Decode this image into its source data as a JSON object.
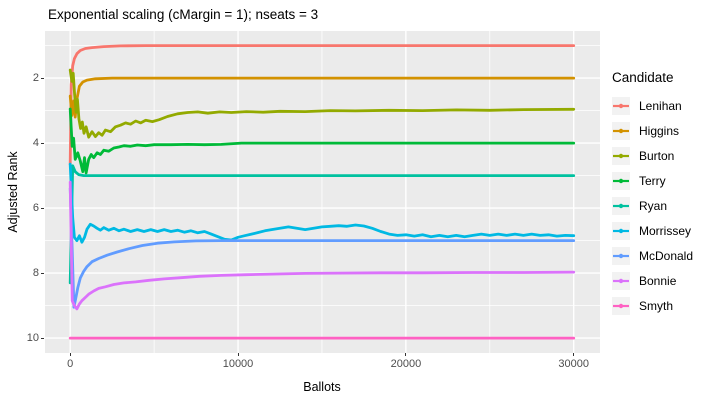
{
  "title": "Exponential scaling (cMargin = 1); nseats = 3",
  "axes": {
    "x": {
      "label": "Ballots",
      "major_ticks": [
        0,
        10000,
        20000,
        30000
      ],
      "minor_ticks": [
        5000,
        15000,
        25000
      ],
      "range": [
        0,
        30000
      ]
    },
    "y": {
      "label": "Adjusted Rank",
      "major_ticks": [
        2,
        4,
        6,
        8,
        10
      ],
      "minor_ticks": [
        1,
        3,
        5,
        7,
        9
      ],
      "range": [
        1,
        10
      ],
      "reversed": true
    }
  },
  "legend": {
    "title": "Candidate",
    "position": "right"
  },
  "theme": {
    "panel_bg": "#EBEBEB",
    "grid_color": "#FFFFFF",
    "tick_text_color": "#4D4D4D",
    "tick_mark_color": "#333333",
    "text_color": "#000000",
    "legend_key_bg": "#F2F2F2"
  },
  "chart_data": {
    "type": "line",
    "title": "Exponential scaling (cMargin = 1); nseats = 3",
    "xlabel": "Ballots",
    "ylabel": "Adjusted Rank",
    "xlim": [
      0,
      30000
    ],
    "ylim": [
      1,
      10
    ],
    "y_axis_reversed": true,
    "grid": true,
    "legend_position": "right",
    "series": [
      {
        "name": "Lenihan",
        "color": "#F8766D",
        "final_rank": 1,
        "points": [
          [
            0,
            4.65
          ],
          [
            60,
            2.2
          ],
          [
            150,
            1.62
          ],
          [
            250,
            1.4
          ],
          [
            400,
            1.25
          ],
          [
            600,
            1.15
          ],
          [
            900,
            1.09
          ],
          [
            1300,
            1.06
          ],
          [
            2000,
            1.03
          ],
          [
            3000,
            1.01
          ],
          [
            4500,
            1.0
          ],
          [
            10000,
            1.0
          ],
          [
            20000,
            1.0
          ],
          [
            30000,
            1.0
          ]
        ]
      },
      {
        "name": "Higgins",
        "color": "#D39200",
        "final_rank": 2,
        "points": [
          [
            0,
            2.55
          ],
          [
            100,
            3.15
          ],
          [
            200,
            2.7
          ],
          [
            300,
            3.2
          ],
          [
            420,
            2.6
          ],
          [
            550,
            2.25
          ],
          [
            750,
            2.12
          ],
          [
            1000,
            2.06
          ],
          [
            1500,
            2.02
          ],
          [
            2500,
            2.0
          ],
          [
            10000,
            2.0
          ],
          [
            20000,
            2.0
          ],
          [
            30000,
            2.0
          ]
        ]
      },
      {
        "name": "Burton",
        "color": "#93AA00",
        "final_rank": 3,
        "points": [
          [
            0,
            1.75
          ],
          [
            100,
            2.1
          ],
          [
            180,
            1.85
          ],
          [
            260,
            2.5
          ],
          [
            350,
            3.05
          ],
          [
            430,
            2.65
          ],
          [
            520,
            3.25
          ],
          [
            620,
            3.55
          ],
          [
            720,
            3.35
          ],
          [
            820,
            3.7
          ],
          [
            950,
            3.5
          ],
          [
            1100,
            3.82
          ],
          [
            1300,
            3.65
          ],
          [
            1500,
            3.8
          ],
          [
            1700,
            3.68
          ],
          [
            1900,
            3.76
          ],
          [
            2100,
            3.6
          ],
          [
            2400,
            3.65
          ],
          [
            2700,
            3.5
          ],
          [
            3000,
            3.45
          ],
          [
            3300,
            3.38
          ],
          [
            3600,
            3.42
          ],
          [
            3900,
            3.32
          ],
          [
            4200,
            3.38
          ],
          [
            4500,
            3.3
          ],
          [
            4900,
            3.34
          ],
          [
            5300,
            3.28
          ],
          [
            5800,
            3.18
          ],
          [
            6400,
            3.1
          ],
          [
            7000,
            3.06
          ],
          [
            7600,
            3.04
          ],
          [
            8200,
            3.08
          ],
          [
            8900,
            3.04
          ],
          [
            9600,
            3.06
          ],
          [
            10500,
            3.03
          ],
          [
            11500,
            3.05
          ],
          [
            12500,
            3.02
          ],
          [
            14000,
            3.03
          ],
          [
            15500,
            3.0
          ],
          [
            17000,
            3.01
          ],
          [
            19000,
            2.99
          ],
          [
            21000,
            3.0
          ],
          [
            23000,
            2.98
          ],
          [
            25000,
            2.99
          ],
          [
            27000,
            2.97
          ],
          [
            30000,
            2.96
          ]
        ]
      },
      {
        "name": "Terry",
        "color": "#00BA38",
        "final_rank": 4,
        "points": [
          [
            0,
            2.95
          ],
          [
            120,
            4.1
          ],
          [
            200,
            3.85
          ],
          [
            300,
            4.5
          ],
          [
            450,
            4.3
          ],
          [
            600,
            4.55
          ],
          [
            750,
            4.88
          ],
          [
            850,
            4.45
          ],
          [
            950,
            4.92
          ],
          [
            1100,
            4.5
          ],
          [
            1250,
            4.35
          ],
          [
            1400,
            4.45
          ],
          [
            1600,
            4.3
          ],
          [
            1800,
            4.35
          ],
          [
            2000,
            4.22
          ],
          [
            2300,
            4.25
          ],
          [
            2600,
            4.15
          ],
          [
            2900,
            4.12
          ],
          [
            3200,
            4.08
          ],
          [
            3600,
            4.1
          ],
          [
            4000,
            4.06
          ],
          [
            4500,
            4.08
          ],
          [
            5000,
            4.05
          ],
          [
            6000,
            4.05
          ],
          [
            7000,
            4.04
          ],
          [
            8000,
            4.05
          ],
          [
            9000,
            4.04
          ],
          [
            10200,
            4.0
          ],
          [
            12000,
            4.0
          ],
          [
            16000,
            4.0
          ],
          [
            20000,
            4.0
          ],
          [
            25000,
            4.0
          ],
          [
            30000,
            4.0
          ]
        ]
      },
      {
        "name": "Ryan",
        "color": "#00C19F",
        "final_rank": 5,
        "points": [
          [
            0,
            8.3
          ],
          [
            150,
            4.7
          ],
          [
            300,
            4.88
          ],
          [
            500,
            4.97
          ],
          [
            800,
            5.0
          ],
          [
            5000,
            5.0
          ],
          [
            10000,
            5.0
          ],
          [
            20000,
            5.0
          ],
          [
            30000,
            5.0
          ]
        ]
      },
      {
        "name": "Morrissey",
        "color": "#00B9E3",
        "final_rank": 6.85,
        "points": [
          [
            0,
            4.65
          ],
          [
            150,
            6.3
          ],
          [
            250,
            6.9
          ],
          [
            400,
            7.0
          ],
          [
            550,
            6.85
          ],
          [
            700,
            7.05
          ],
          [
            850,
            6.9
          ],
          [
            1000,
            6.65
          ],
          [
            1200,
            6.5
          ],
          [
            1400,
            6.55
          ],
          [
            1600,
            6.62
          ],
          [
            1800,
            6.68
          ],
          [
            2000,
            6.6
          ],
          [
            2300,
            6.68
          ],
          [
            2600,
            6.62
          ],
          [
            2900,
            6.7
          ],
          [
            3200,
            6.65
          ],
          [
            3600,
            6.72
          ],
          [
            4000,
            6.66
          ],
          [
            4400,
            6.72
          ],
          [
            4800,
            6.66
          ],
          [
            5200,
            6.72
          ],
          [
            5600,
            6.66
          ],
          [
            6000,
            6.72
          ],
          [
            6400,
            6.68
          ],
          [
            6800,
            6.74
          ],
          [
            7200,
            6.7
          ],
          [
            7600,
            6.76
          ],
          [
            8000,
            6.72
          ],
          [
            8400,
            6.8
          ],
          [
            8800,
            6.88
          ],
          [
            9200,
            6.96
          ],
          [
            9600,
            6.98
          ],
          [
            10000,
            6.9
          ],
          [
            10400,
            6.85
          ],
          [
            10800,
            6.8
          ],
          [
            11200,
            6.75
          ],
          [
            11600,
            6.7
          ],
          [
            12000,
            6.66
          ],
          [
            12500,
            6.62
          ],
          [
            13000,
            6.58
          ],
          [
            13500,
            6.62
          ],
          [
            14000,
            6.66
          ],
          [
            14500,
            6.62
          ],
          [
            15000,
            6.58
          ],
          [
            15500,
            6.56
          ],
          [
            16000,
            6.54
          ],
          [
            16500,
            6.56
          ],
          [
            17000,
            6.52
          ],
          [
            17500,
            6.55
          ],
          [
            18000,
            6.62
          ],
          [
            18500,
            6.72
          ],
          [
            19000,
            6.8
          ],
          [
            19500,
            6.84
          ],
          [
            20000,
            6.82
          ],
          [
            20500,
            6.86
          ],
          [
            21000,
            6.82
          ],
          [
            21500,
            6.88
          ],
          [
            22000,
            6.84
          ],
          [
            22500,
            6.88
          ],
          [
            23000,
            6.84
          ],
          [
            23500,
            6.88
          ],
          [
            24000,
            6.84
          ],
          [
            24500,
            6.8
          ],
          [
            25000,
            6.84
          ],
          [
            25500,
            6.8
          ],
          [
            26000,
            6.84
          ],
          [
            26500,
            6.8
          ],
          [
            27000,
            6.84
          ],
          [
            27500,
            6.8
          ],
          [
            28000,
            6.84
          ],
          [
            28500,
            6.82
          ],
          [
            29000,
            6.86
          ],
          [
            29500,
            6.84
          ],
          [
            30000,
            6.85
          ]
        ]
      },
      {
        "name": "McDonald",
        "color": "#619CFF",
        "final_rank": 7,
        "points": [
          [
            0,
            5.4
          ],
          [
            120,
            7.3
          ],
          [
            220,
            9.05
          ],
          [
            320,
            8.8
          ],
          [
            450,
            8.45
          ],
          [
            600,
            8.15
          ],
          [
            800,
            7.95
          ],
          [
            1000,
            7.8
          ],
          [
            1300,
            7.65
          ],
          [
            1700,
            7.55
          ],
          [
            2200,
            7.45
          ],
          [
            2800,
            7.35
          ],
          [
            3500,
            7.25
          ],
          [
            4300,
            7.15
          ],
          [
            5200,
            7.08
          ],
          [
            6200,
            7.04
          ],
          [
            7500,
            7.01
          ],
          [
            9000,
            7.0
          ],
          [
            12000,
            7.0
          ],
          [
            16000,
            7.0
          ],
          [
            20000,
            7.0
          ],
          [
            25000,
            7.0
          ],
          [
            30000,
            7.0
          ]
        ]
      },
      {
        "name": "Bonnie",
        "color": "#DB72FB",
        "final_rank": 8,
        "points": [
          [
            0,
            5.2
          ],
          [
            120,
            8.85
          ],
          [
            250,
            9.0
          ],
          [
            400,
            9.1
          ],
          [
            550,
            8.95
          ],
          [
            700,
            8.85
          ],
          [
            900,
            8.75
          ],
          [
            1100,
            8.65
          ],
          [
            1400,
            8.55
          ],
          [
            1700,
            8.47
          ],
          [
            2100,
            8.42
          ],
          [
            2600,
            8.35
          ],
          [
            3200,
            8.3
          ],
          [
            3900,
            8.27
          ],
          [
            4700,
            8.22
          ],
          [
            5600,
            8.18
          ],
          [
            6600,
            8.14
          ],
          [
            7700,
            8.1
          ],
          [
            9000,
            8.07
          ],
          [
            10500,
            8.05
          ],
          [
            12000,
            8.03
          ],
          [
            14000,
            8.01
          ],
          [
            16000,
            8.0
          ],
          [
            18500,
            7.99
          ],
          [
            21000,
            7.99
          ],
          [
            24000,
            7.98
          ],
          [
            27000,
            7.98
          ],
          [
            30000,
            7.97
          ]
        ]
      },
      {
        "name": "Smyth",
        "color": "#FF61C3",
        "final_rank": 10,
        "points": [
          [
            0,
            10
          ],
          [
            5000,
            10
          ],
          [
            10000,
            10
          ],
          [
            15000,
            10
          ],
          [
            20000,
            10
          ],
          [
            25000,
            10
          ],
          [
            30000,
            10
          ]
        ]
      }
    ]
  }
}
